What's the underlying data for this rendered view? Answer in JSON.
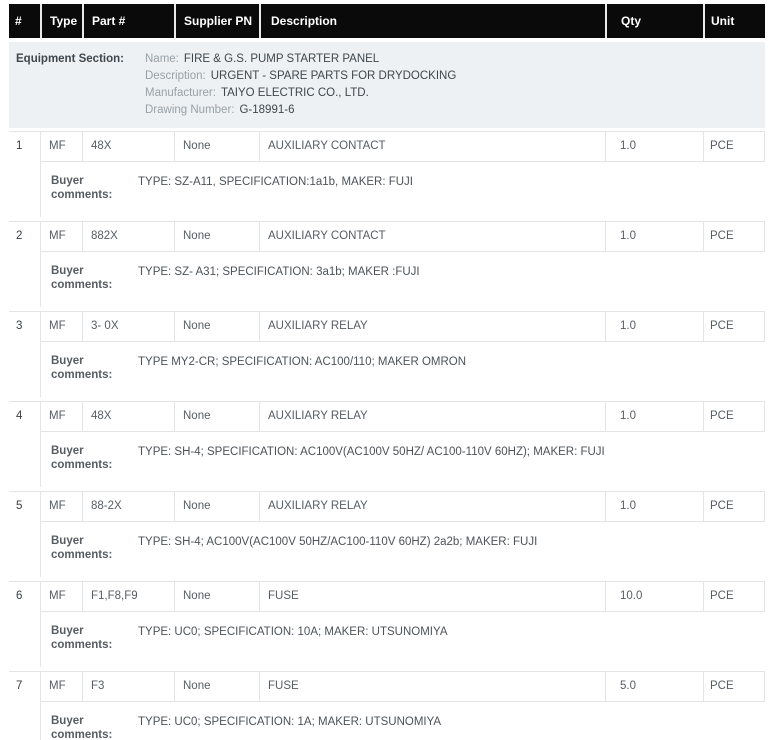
{
  "table": {
    "columns": [
      "#",
      "Type",
      "Part #",
      "Supplier PN",
      "Description",
      "Qty",
      "Unit"
    ],
    "equipment_section": {
      "label": "Equipment Section:",
      "fields": [
        {
          "label": "Name:",
          "value": "FIRE & G.S. PUMP STARTER PANEL"
        },
        {
          "label": "Description:",
          "value": "URGENT - SPARE PARTS FOR DRYDOCKING"
        },
        {
          "label": "Manufacturer:",
          "value": "TAIYO ELECTRIC CO., LTD."
        },
        {
          "label": "Drawing Number:",
          "value": "G-18991-6"
        }
      ]
    },
    "buyer_comments_label": "Buyer comments:",
    "rows": [
      {
        "num": "1",
        "type": "MF",
        "part": "48X",
        "supplier_pn": "None",
        "description": "AUXILIARY CONTACT",
        "qty": "1.0",
        "unit": "PCE",
        "comments": "TYPE: SZ-A11, SPECIFICATION:1a1b, MAKER: FUJI"
      },
      {
        "num": "2",
        "type": "MF",
        "part": "882X",
        "supplier_pn": "None",
        "description": "AUXILIARY CONTACT",
        "qty": "1.0",
        "unit": "PCE",
        "comments": "TYPE: SZ- A31; SPECIFICATION: 3a1b; MAKER :FUJI"
      },
      {
        "num": "3",
        "type": "MF",
        "part": "3- 0X",
        "supplier_pn": "None",
        "description": "AUXILIARY RELAY",
        "qty": "1.0",
        "unit": "PCE",
        "comments": "TYPE MY2-CR; SPECIFICATION: AC100/110; MAKER OMRON"
      },
      {
        "num": "4",
        "type": "MF",
        "part": "48X",
        "supplier_pn": "None",
        "description": "AUXILIARY RELAY",
        "qty": "1.0",
        "unit": "PCE",
        "comments": "TYPE: SH-4; SPECIFICATION: AC100V(AC100V 50HZ/ AC100-110V 60HZ); MAKER: FUJI"
      },
      {
        "num": "5",
        "type": "MF",
        "part": "88-2X",
        "supplier_pn": "None",
        "description": "AUXILIARY RELAY",
        "qty": "1.0",
        "unit": "PCE",
        "comments": "TYPE: SH-4; AC100V(AC100V 50HZ/AC100-110V 60HZ) 2a2b; MAKER: FUJI"
      },
      {
        "num": "6",
        "type": "MF",
        "part": "F1,F8,F9",
        "supplier_pn": "None",
        "description": "FUSE",
        "qty": "10.0",
        "unit": "PCE",
        "comments": "TYPE: UC0; SPECIFICATION: 10A; MAKER: UTSUNOMIYA"
      },
      {
        "num": "7",
        "type": "MF",
        "part": "F3",
        "supplier_pn": "None",
        "description": "FUSE",
        "qty": "5.0",
        "unit": "PCE",
        "comments": "TYPE: UC0; SPECIFICATION: 1A; MAKER: UTSUNOMIYA"
      }
    ]
  },
  "colors": {
    "header_bg": "#0a0a0a",
    "header_text": "#ffffff",
    "equipment_bg": "#edf1f3",
    "border": "#e2e5e7",
    "label_gray": "#97a1a8",
    "text_dark": "#3f474e",
    "cell_text": "#575d63"
  }
}
